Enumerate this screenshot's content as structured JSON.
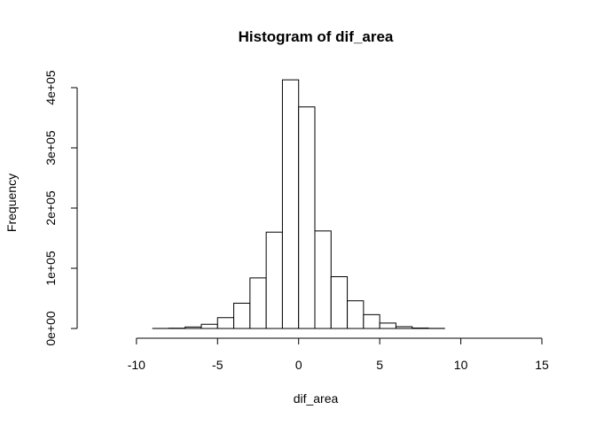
{
  "chart_data": {
    "type": "bar",
    "title": "Histogram of dif_area",
    "xlabel": "dif_area",
    "ylabel": "Frequency",
    "xlim": [
      -13,
      15
    ],
    "ylim": [
      0,
      400000
    ],
    "x_ticks": [
      -10,
      -5,
      0,
      5,
      10,
      15
    ],
    "x_tick_labels": [
      "-10",
      "-5",
      "0",
      "5",
      "10",
      "15"
    ],
    "y_ticks": [
      0,
      100000,
      200000,
      300000,
      400000
    ],
    "y_tick_labels": [
      "0e+00",
      "1e+05",
      "2e+05",
      "3e+05",
      "4e+05"
    ],
    "bin_width": 1,
    "bins": [
      {
        "start": -13,
        "end": -12,
        "value": 0
      },
      {
        "start": -12,
        "end": -11,
        "value": 0
      },
      {
        "start": -11,
        "end": -10,
        "value": 0
      },
      {
        "start": -10,
        "end": -9,
        "value": 0
      },
      {
        "start": -9,
        "end": -8,
        "value": 100
      },
      {
        "start": -8,
        "end": -7,
        "value": 500
      },
      {
        "start": -7,
        "end": -6,
        "value": 2500
      },
      {
        "start": -6,
        "end": -5,
        "value": 7000
      },
      {
        "start": -5,
        "end": -4,
        "value": 18000
      },
      {
        "start": -4,
        "end": -3,
        "value": 42000
      },
      {
        "start": -3,
        "end": -2,
        "value": 84000
      },
      {
        "start": -2,
        "end": -1,
        "value": 160000
      },
      {
        "start": -1,
        "end": 0,
        "value": 413000
      },
      {
        "start": 0,
        "end": 1,
        "value": 368000
      },
      {
        "start": 1,
        "end": 2,
        "value": 162000
      },
      {
        "start": 2,
        "end": 3,
        "value": 86000
      },
      {
        "start": 3,
        "end": 4,
        "value": 46000
      },
      {
        "start": 4,
        "end": 5,
        "value": 23000
      },
      {
        "start": 5,
        "end": 6,
        "value": 9000
      },
      {
        "start": 6,
        "end": 7,
        "value": 3000
      },
      {
        "start": 7,
        "end": 8,
        "value": 800
      },
      {
        "start": 8,
        "end": 9,
        "value": 200
      },
      {
        "start": 9,
        "end": 10,
        "value": 0
      },
      {
        "start": 10,
        "end": 11,
        "value": 0
      },
      {
        "start": 11,
        "end": 12,
        "value": 0
      },
      {
        "start": 12,
        "end": 13,
        "value": 0
      },
      {
        "start": 13,
        "end": 14,
        "value": 0
      },
      {
        "start": 14,
        "end": 15,
        "value": 0
      }
    ],
    "grid": false,
    "legend": "none",
    "bar_fill": "#ffffff",
    "bar_stroke": "#000000"
  }
}
